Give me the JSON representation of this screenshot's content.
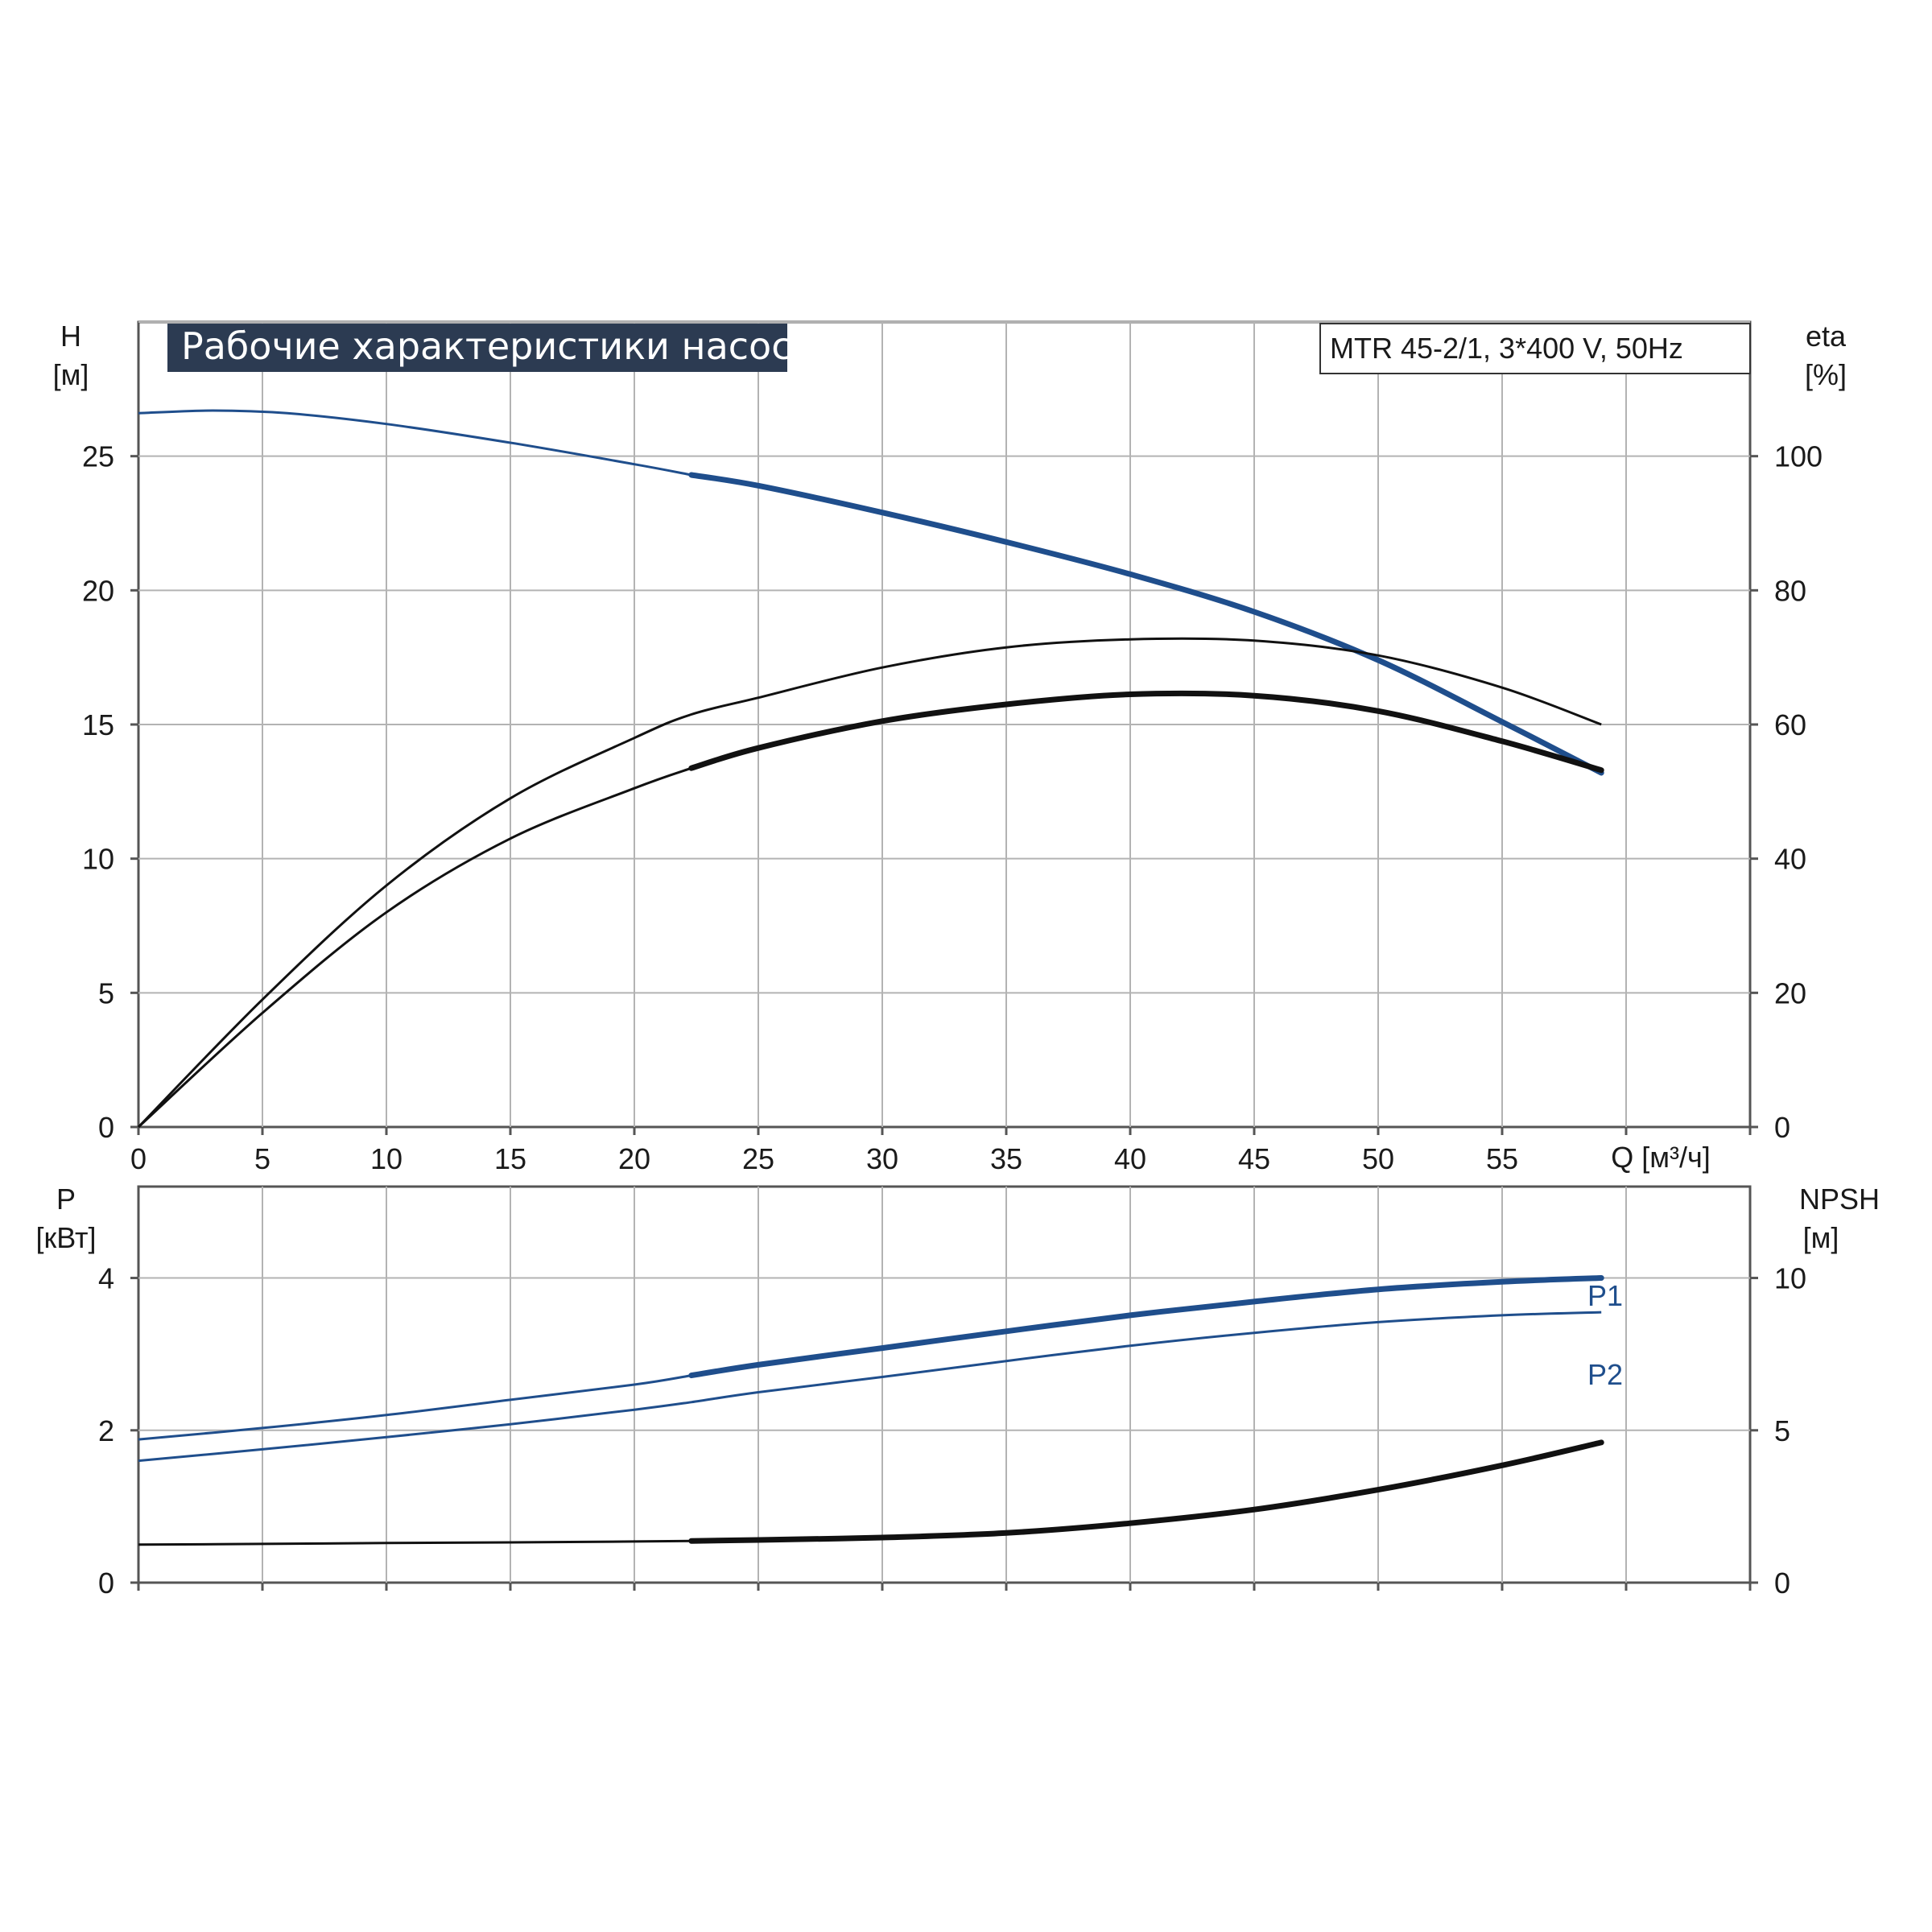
{
  "colors": {
    "blue": "#1f4e8c",
    "black": "#111111",
    "grid": "#b3b3b3",
    "axis": "#555555",
    "title_bg": "#2c3b52",
    "title_fg": "#ffffff"
  },
  "chart_data": [
    {
      "type": "line",
      "title": "Рабочие характеристики насоса",
      "info": "MTR 45-2/1, 3*400 V, 50Hz",
      "xlabel": "Q [м³/ч]",
      "x_ticks": [
        "0",
        "5",
        "10",
        "15",
        "20",
        "25",
        "30",
        "35",
        "40",
        "45",
        "50",
        "55"
      ],
      "xlim": [
        0,
        65
      ],
      "ylabel_left": "H",
      "ylabel_left_unit": "[м]",
      "ylim_left": [
        0,
        30
      ],
      "y_ticks_left": [
        "0",
        "5",
        "10",
        "15",
        "20",
        "25"
      ],
      "ylabel_right": "eta",
      "ylabel_right_unit": "[%]",
      "ylim_right": [
        0,
        120
      ],
      "y_ticks_right": [
        "0",
        "20",
        "40",
        "60",
        "80",
        "100"
      ],
      "grid": true,
      "series": [
        {
          "key": "head",
          "axis": "left",
          "color": "blue",
          "x": [
            0,
            3,
            6,
            10,
            15,
            20,
            22.3,
            25,
            30,
            35,
            40,
            45,
            50,
            55,
            59
          ],
          "y": [
            26.6,
            26.7,
            26.6,
            26.2,
            25.5,
            24.7,
            24.3,
            23.9,
            22.9,
            21.8,
            20.6,
            19.2,
            17.4,
            15.1,
            13.2
          ],
          "bold_from": 22.3
        },
        {
          "key": "eta_outer",
          "axis": "right",
          "color": "black",
          "x": [
            0,
            5,
            10,
            15,
            20,
            22.3,
            25,
            30,
            35,
            40,
            45,
            50,
            55,
            59
          ],
          "y": [
            0,
            19,
            36,
            49,
            58,
            61.5,
            64,
            68.5,
            71.5,
            72.7,
            72.5,
            70.3,
            65.5,
            60
          ],
          "bold_from": 999
        },
        {
          "key": "eta_inner",
          "axis": "right",
          "color": "black",
          "x": [
            0,
            5,
            10,
            15,
            20,
            22.3,
            25,
            30,
            35,
            40,
            45,
            50,
            55,
            59
          ],
          "y": [
            0,
            17,
            32,
            43,
            50.5,
            53.5,
            56.5,
            60.5,
            63,
            64.5,
            64.3,
            62,
            57.5,
            53.2
          ],
          "bold_from": 22.3
        }
      ]
    },
    {
      "type": "line",
      "ylabel_left": "P",
      "ylabel_left_unit": "[кВт]",
      "ylim_left": [
        0,
        5.2
      ],
      "y_ticks_left": [
        "0",
        "2",
        "4"
      ],
      "ylabel_right": "NPSH",
      "ylabel_right_unit": "[м]",
      "ylim_right": [
        0,
        13
      ],
      "y_ticks_right": [
        "0",
        "5",
        "10"
      ],
      "xlim": [
        0,
        65
      ],
      "grid": true,
      "series": [
        {
          "key": "p1",
          "name": "P1",
          "axis": "left",
          "color": "blue",
          "x": [
            0,
            5,
            10,
            15,
            20,
            22.3,
            25,
            30,
            35,
            40,
            45,
            50,
            55,
            59
          ],
          "y": [
            1.88,
            2.03,
            2.2,
            2.4,
            2.6,
            2.72,
            2.86,
            3.08,
            3.3,
            3.51,
            3.69,
            3.85,
            3.95,
            4.0
          ],
          "bold_from": 22.3
        },
        {
          "key": "p2",
          "name": "P2",
          "axis": "left",
          "color": "blue",
          "x": [
            0,
            5,
            10,
            15,
            20,
            22.3,
            25,
            30,
            35,
            40,
            45,
            50,
            55,
            59
          ],
          "y": [
            1.6,
            1.75,
            1.91,
            2.08,
            2.27,
            2.37,
            2.5,
            2.7,
            2.91,
            3.11,
            3.28,
            3.42,
            3.51,
            3.55
          ],
          "bold_from": 999
        },
        {
          "key": "npsh",
          "axis": "right",
          "color": "black",
          "x": [
            0,
            5,
            10,
            15,
            20,
            22.3,
            25,
            30,
            35,
            40,
            45,
            50,
            55,
            59
          ],
          "y": [
            1.25,
            1.27,
            1.3,
            1.32,
            1.35,
            1.37,
            1.4,
            1.48,
            1.63,
            1.95,
            2.4,
            3.05,
            3.85,
            4.6
          ],
          "bold_from": 22.3
        }
      ]
    }
  ]
}
